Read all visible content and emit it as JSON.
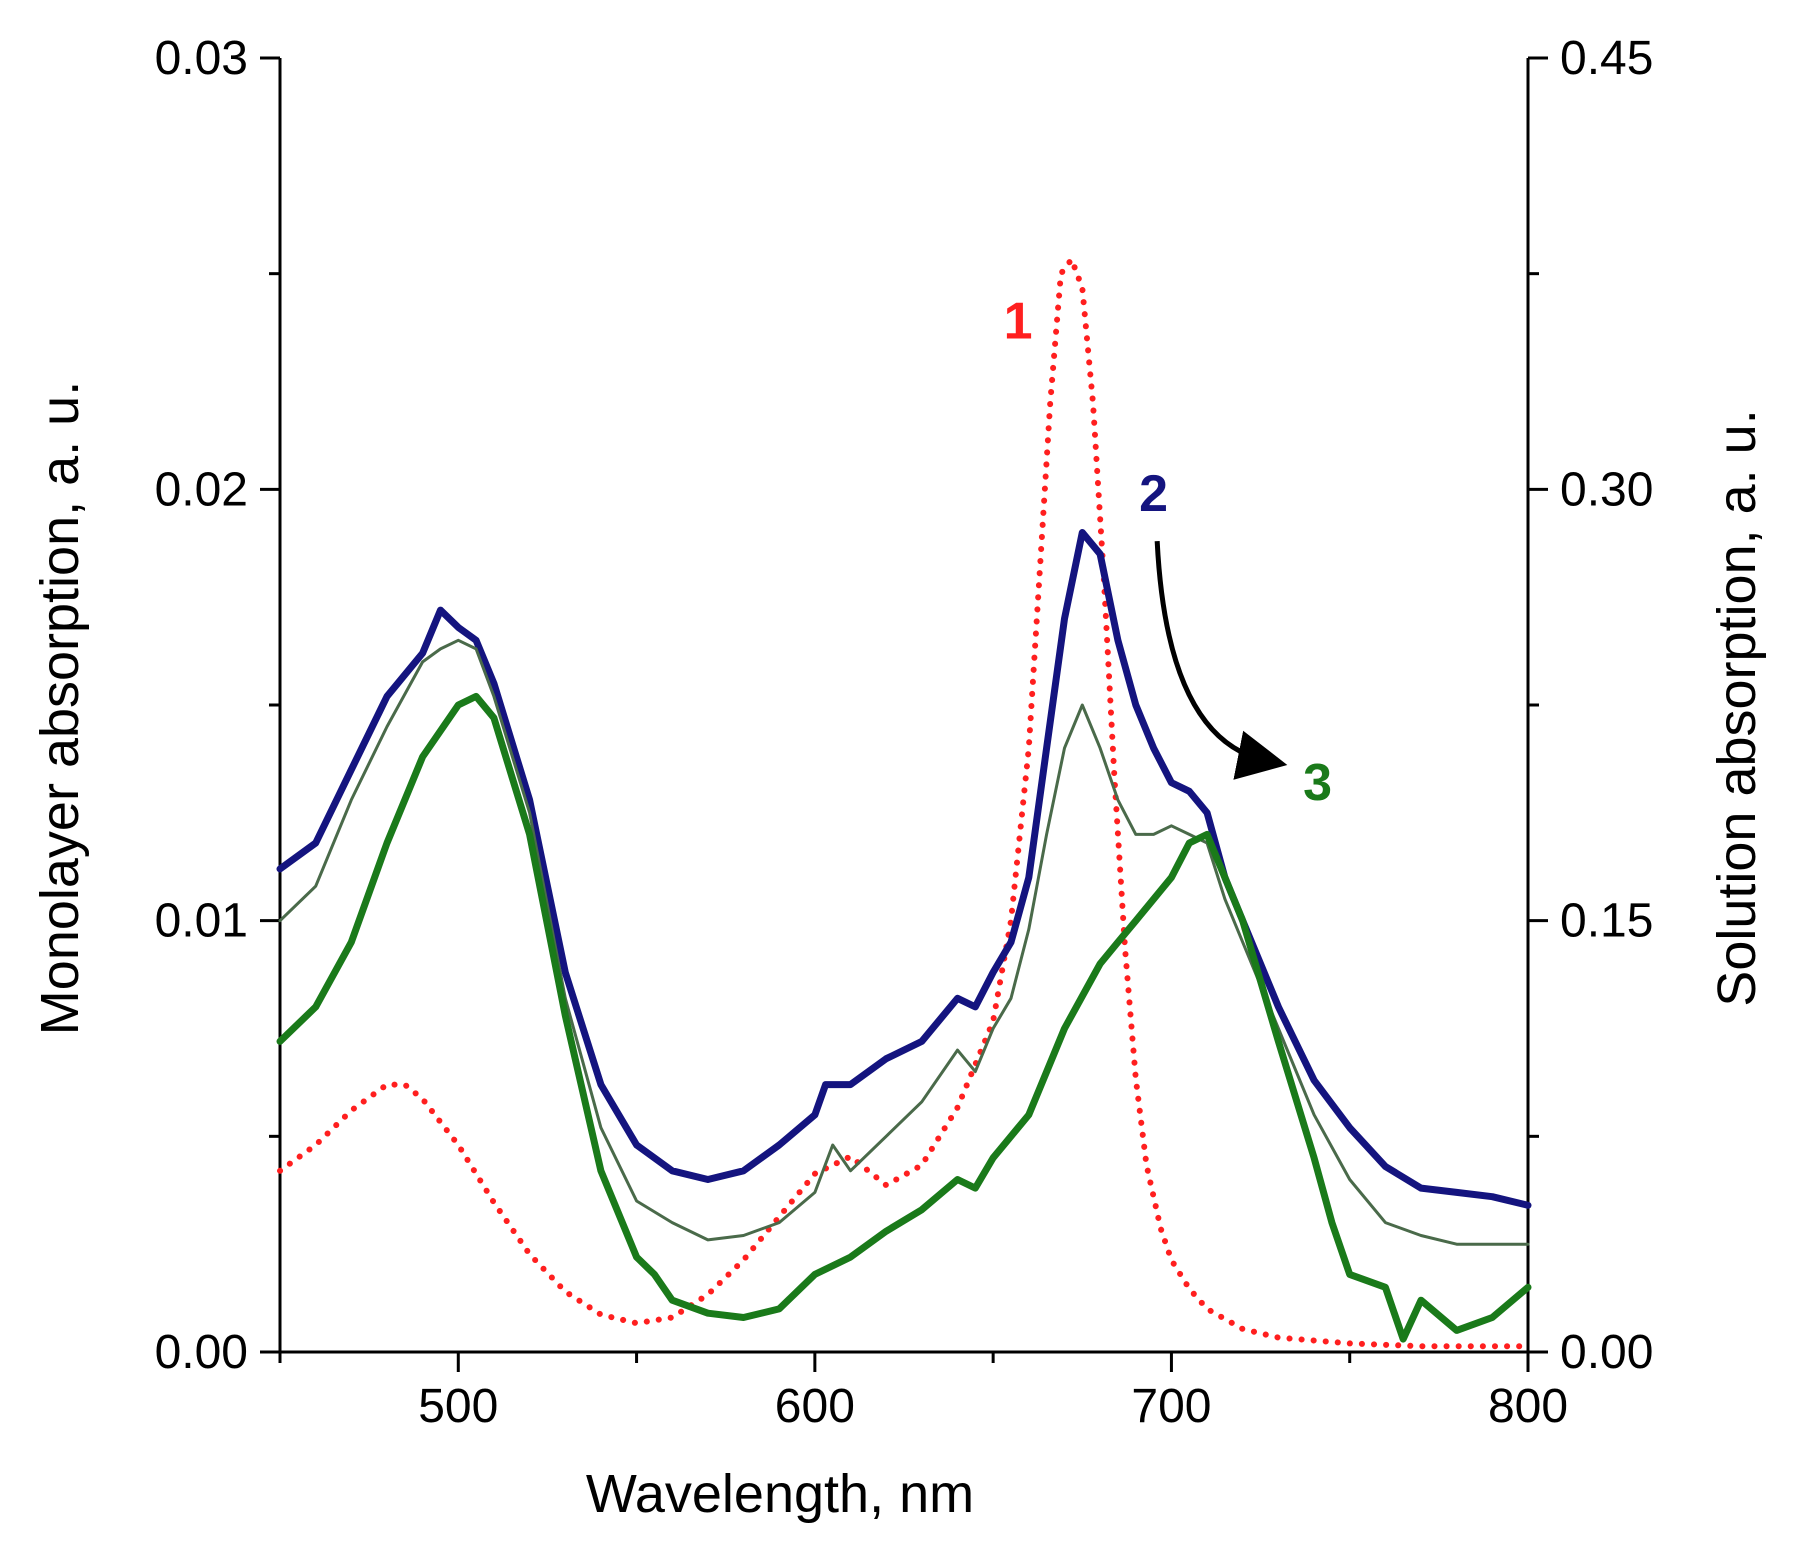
{
  "chart_data": {
    "type": "line",
    "x_axis": {
      "label": "Wavelength, nm",
      "range": [
        450,
        800
      ],
      "ticks": [
        500,
        600,
        700,
        800
      ],
      "minor_ticks": [
        450,
        550,
        650,
        750
      ]
    },
    "y_axis_left": {
      "label": "Monolayer absorption, a. u.",
      "range": [
        0,
        0.03
      ],
      "ticks": [
        "0.00",
        "0.01",
        "0.02",
        "0.03"
      ],
      "minor_ticks": [
        0.005,
        0.015,
        0.025
      ]
    },
    "y_axis_right": {
      "label": "Solution absorption, a. u.",
      "range": [
        0,
        0.45
      ],
      "ticks": [
        "0.00",
        "0.15",
        "0.30",
        "0.45"
      ],
      "minor_ticks": [
        0.075,
        0.225,
        0.375
      ]
    },
    "series": [
      {
        "name": "1",
        "axis": "right",
        "style": "dotted",
        "color": "#ff1f1f",
        "x": [
          450,
          460,
          470,
          480,
          485,
          490,
          500,
          510,
          520,
          530,
          540,
          550,
          560,
          570,
          580,
          590,
          600,
          610,
          620,
          630,
          640,
          650,
          655,
          660,
          663,
          666,
          669,
          672,
          675,
          678,
          681,
          684,
          687,
          690,
          693,
          697,
          700,
          705,
          710,
          720,
          730,
          750,
          770,
          800
        ],
        "y": [
          0.063,
          0.072,
          0.084,
          0.093,
          0.093,
          0.088,
          0.072,
          0.052,
          0.034,
          0.021,
          0.013,
          0.01,
          0.012,
          0.02,
          0.032,
          0.047,
          0.062,
          0.068,
          0.058,
          0.065,
          0.085,
          0.115,
          0.15,
          0.21,
          0.27,
          0.33,
          0.375,
          0.38,
          0.37,
          0.33,
          0.27,
          0.2,
          0.14,
          0.095,
          0.065,
          0.043,
          0.032,
          0.022,
          0.015,
          0.008,
          0.005,
          0.003,
          0.002,
          0.002
        ]
      },
      {
        "name": "2",
        "axis": "left",
        "style": "solid",
        "color": "#14147f",
        "x": [
          450,
          460,
          470,
          480,
          490,
          495,
          500,
          505,
          510,
          520,
          530,
          540,
          550,
          560,
          570,
          580,
          590,
          600,
          603,
          610,
          620,
          630,
          640,
          645,
          650,
          655,
          660,
          665,
          670,
          675,
          680,
          685,
          690,
          695,
          700,
          705,
          710,
          715,
          720,
          730,
          740,
          750,
          760,
          770,
          780,
          790,
          800
        ],
        "y": [
          0.0112,
          0.0118,
          0.0135,
          0.0152,
          0.0162,
          0.0172,
          0.0168,
          0.0165,
          0.0155,
          0.0128,
          0.0088,
          0.0062,
          0.0048,
          0.0042,
          0.004,
          0.0042,
          0.0048,
          0.0055,
          0.0062,
          0.0062,
          0.0068,
          0.0072,
          0.0082,
          0.008,
          0.0088,
          0.0095,
          0.011,
          0.014,
          0.017,
          0.019,
          0.0185,
          0.0165,
          0.015,
          0.014,
          0.0132,
          0.013,
          0.0125,
          0.011,
          0.01,
          0.008,
          0.0063,
          0.0052,
          0.0043,
          0.0038,
          0.0037,
          0.0036,
          0.0034
        ]
      },
      {
        "name": "",
        "axis": "left",
        "style": "solid-thin",
        "color": "#4a6a4a",
        "x": [
          450,
          460,
          470,
          480,
          490,
          495,
          500,
          505,
          510,
          520,
          530,
          540,
          550,
          560,
          570,
          580,
          590,
          600,
          605,
          610,
          620,
          630,
          640,
          645,
          650,
          655,
          660,
          665,
          670,
          675,
          680,
          685,
          690,
          695,
          700,
          705,
          710,
          715,
          720,
          730,
          740,
          750,
          760,
          770,
          780,
          790,
          800
        ],
        "y": [
          0.01,
          0.0108,
          0.0128,
          0.0145,
          0.016,
          0.0163,
          0.0165,
          0.0163,
          0.0152,
          0.0125,
          0.0082,
          0.0052,
          0.0035,
          0.003,
          0.0026,
          0.0027,
          0.003,
          0.0037,
          0.0048,
          0.0042,
          0.005,
          0.0058,
          0.007,
          0.0065,
          0.0075,
          0.0082,
          0.0098,
          0.012,
          0.014,
          0.015,
          0.014,
          0.0128,
          0.012,
          0.012,
          0.0122,
          0.012,
          0.0118,
          0.0105,
          0.0095,
          0.0075,
          0.0055,
          0.004,
          0.003,
          0.0027,
          0.0025,
          0.0025,
          0.0025
        ]
      },
      {
        "name": "3",
        "axis": "left",
        "style": "solid",
        "color": "#1a7a1a",
        "x": [
          450,
          460,
          470,
          480,
          490,
          500,
          505,
          510,
          520,
          530,
          540,
          550,
          555,
          560,
          570,
          580,
          590,
          600,
          610,
          620,
          630,
          640,
          645,
          650,
          660,
          670,
          680,
          685,
          690,
          695,
          700,
          705,
          710,
          715,
          720,
          730,
          740,
          745,
          750,
          760,
          765,
          770,
          780,
          790,
          800
        ],
        "y": [
          0.0072,
          0.008,
          0.0095,
          0.0118,
          0.0138,
          0.015,
          0.0152,
          0.0147,
          0.012,
          0.0078,
          0.0042,
          0.0022,
          0.0018,
          0.0012,
          0.0009,
          0.0008,
          0.001,
          0.0018,
          0.0022,
          0.0028,
          0.0033,
          0.004,
          0.0038,
          0.0045,
          0.0055,
          0.0075,
          0.009,
          0.0095,
          0.01,
          0.0105,
          0.011,
          0.0118,
          0.012,
          0.011,
          0.01,
          0.0072,
          0.0045,
          0.003,
          0.0018,
          0.0015,
          0.0003,
          0.0012,
          0.0005,
          0.0008,
          0.0015
        ]
      }
    ],
    "annotations": [
      {
        "text": "1",
        "color": "#ff1f1f",
        "x": 657,
        "y_left": 0.0235
      },
      {
        "text": "2",
        "color": "#14147f",
        "x": 695,
        "y_left": 0.0195
      },
      {
        "text": "3",
        "color": "#1a7a1a",
        "x": 741,
        "y_left": 0.0128
      }
    ],
    "arrow": {
      "from": {
        "x": 696,
        "y_left": 0.0188
      },
      "to": {
        "x": 727,
        "y_left": 0.0137
      },
      "color": "#000000"
    }
  }
}
